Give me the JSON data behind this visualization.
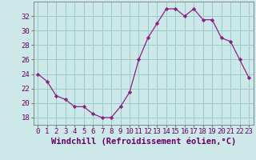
{
  "x": [
    0,
    1,
    2,
    3,
    4,
    5,
    6,
    7,
    8,
    9,
    10,
    11,
    12,
    13,
    14,
    15,
    16,
    17,
    18,
    19,
    20,
    21,
    22,
    23
  ],
  "y": [
    24,
    23,
    21,
    20.5,
    19.5,
    19.5,
    18.5,
    18,
    18,
    19.5,
    21.5,
    26,
    29,
    31,
    33,
    33,
    32,
    33,
    31.5,
    31.5,
    29,
    28.5,
    26,
    23.5
  ],
  "line_color": "#882288",
  "marker_color": "#882288",
  "bg_color": "#cce8e8",
  "grid_color": "#99cccc",
  "xlabel": "Windchill (Refroidissement éolien,°C)",
  "xlim": [
    -0.5,
    23.5
  ],
  "ylim": [
    17.0,
    34.0
  ],
  "yticks": [
    18,
    20,
    22,
    24,
    26,
    28,
    30,
    32
  ],
  "xticks": [
    0,
    1,
    2,
    3,
    4,
    5,
    6,
    7,
    8,
    9,
    10,
    11,
    12,
    13,
    14,
    15,
    16,
    17,
    18,
    19,
    20,
    21,
    22,
    23
  ],
  "xtick_labels": [
    "0",
    "1",
    "2",
    "3",
    "4",
    "5",
    "6",
    "7",
    "8",
    "9",
    "10",
    "11",
    "12",
    "13",
    "14",
    "15",
    "16",
    "17",
    "18",
    "19",
    "20",
    "21",
    "22",
    "23"
  ],
  "tick_color": "#660066",
  "xlabel_fontsize": 7.5,
  "tick_fontsize": 6.5
}
